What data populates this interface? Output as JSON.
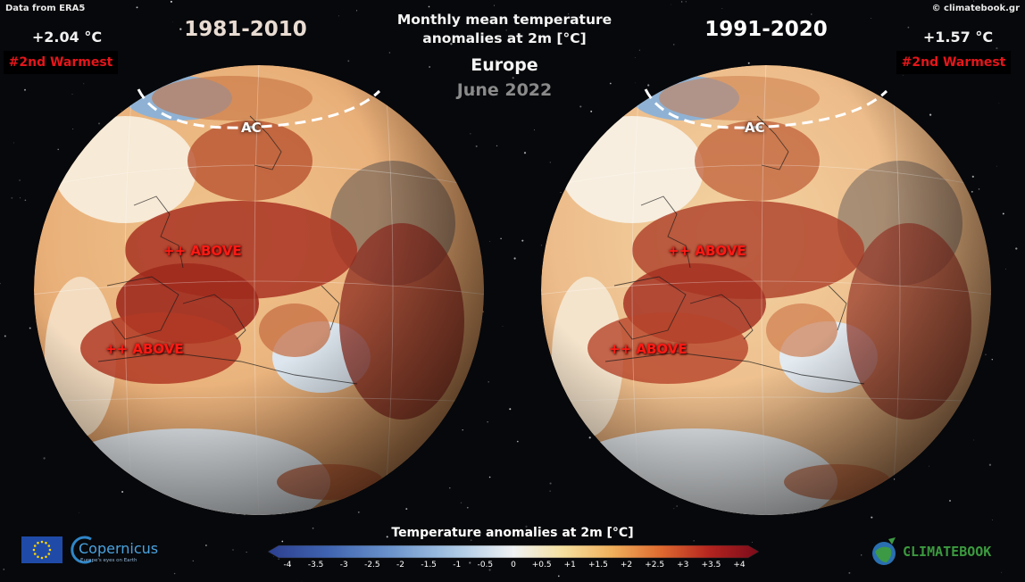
{
  "header": {
    "source": "Data from ERA5",
    "copyright": "© climatebook.gr",
    "title_line1": "Monthly mean temperature",
    "title_line2": "anomalies at 2m [°C]",
    "region": "Europe",
    "period": "June 2022"
  },
  "panels": [
    {
      "baseline": "1981-2010",
      "anomaly": "+2.04 °C",
      "rank": "#2nd Warmest",
      "labels": [
        "++ ABOVE",
        "++ ABOVE"
      ],
      "circle_label": "AC"
    },
    {
      "baseline": "1991-2020",
      "anomaly": "+1.57 °C",
      "rank": "#2nd Warmest",
      "labels": [
        "++ ABOVE",
        "++ ABOVE"
      ],
      "circle_label": "AC"
    }
  ],
  "colorbar": {
    "title": "Temperature anomalies at 2m [°C]",
    "ticks": [
      "-4",
      "-3.5",
      "-3",
      "-2.5",
      "-2",
      "-1.5",
      "-1",
      "-0.5",
      "0",
      "+0.5",
      "+1",
      "+1.5",
      "+2",
      "+2.5",
      "+3",
      "+3.5",
      "+4"
    ],
    "colors": [
      "#2c3f8f",
      "#3f63b0",
      "#6b93cc",
      "#a9c7e4",
      "#e8eef2",
      "#f5e6b8",
      "#f0b05c",
      "#df6a30",
      "#b3241f",
      "#7a0b1a"
    ]
  },
  "logos": {
    "copernicus": "Copernicus",
    "copernicus_tagline": "Europe's eyes on Earth",
    "climatebook": "CLIMATEBOOK"
  }
}
